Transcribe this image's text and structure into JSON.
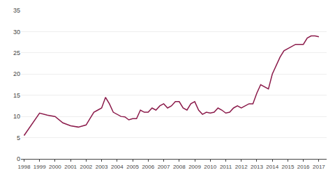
{
  "chart_data": {
    "type": "line",
    "x": [
      1998,
      1998.5,
      1999,
      1999.5,
      2000,
      2000.5,
      2001,
      2001.5,
      2002,
      2002.25,
      2002.5,
      2002.75,
      2003,
      2003.25,
      2003.5,
      2003.75,
      2004,
      2004.25,
      2004.5,
      2004.75,
      2005,
      2005.25,
      2005.5,
      2005.75,
      2006,
      2006.25,
      2006.5,
      2006.75,
      2007,
      2007.25,
      2007.5,
      2007.75,
      2008,
      2008.25,
      2008.5,
      2008.75,
      2009,
      2009.25,
      2009.5,
      2009.75,
      2010,
      2010.25,
      2010.5,
      2010.75,
      2011,
      2011.25,
      2011.5,
      2011.75,
      2012,
      2012.25,
      2012.5,
      2012.75,
      2013,
      2013.25,
      2013.5,
      2013.75,
      2014,
      2014.25,
      2014.5,
      2014.75,
      2015,
      2015.25,
      2015.5,
      2015.75,
      2016,
      2016.25,
      2016.5,
      2016.75,
      2017
    ],
    "values": [
      5.5,
      8.2,
      10.8,
      10.3,
      10.0,
      8.5,
      7.8,
      7.5,
      8.0,
      9.5,
      11.0,
      11.5,
      12.0,
      14.5,
      13.0,
      11.0,
      10.5,
      10.0,
      9.9,
      9.2,
      9.5,
      9.5,
      11.5,
      11.0,
      11.0,
      12.0,
      11.5,
      12.5,
      13.0,
      12.0,
      12.5,
      13.5,
      13.5,
      12.0,
      11.5,
      13.0,
      13.5,
      11.5,
      10.5,
      11.0,
      10.8,
      11.0,
      12.0,
      11.5,
      10.8,
      11.0,
      12.0,
      12.5,
      12.0,
      12.5,
      13.0,
      13.0,
      15.5,
      17.5,
      17.0,
      16.5,
      20.0,
      22.0,
      24.0,
      25.5,
      26.0,
      26.5,
      27.0,
      27.0,
      27.0,
      28.5,
      29.0,
      29.0,
      28.8
    ],
    "color": "#8B1A4A",
    "xlim": [
      1997.8,
      2017.5
    ],
    "xticks": [
      1998,
      1999,
      2000,
      2001,
      2002,
      2003,
      2004,
      2005,
      2006,
      2007,
      2008,
      2009,
      2010,
      2011,
      2012,
      2013,
      2014,
      2015,
      2016,
      2017
    ],
    "ylim": [
      0,
      35
    ],
    "yticks": [
      0,
      5,
      10,
      15,
      20,
      25,
      30,
      35
    ],
    "grid": true
  }
}
